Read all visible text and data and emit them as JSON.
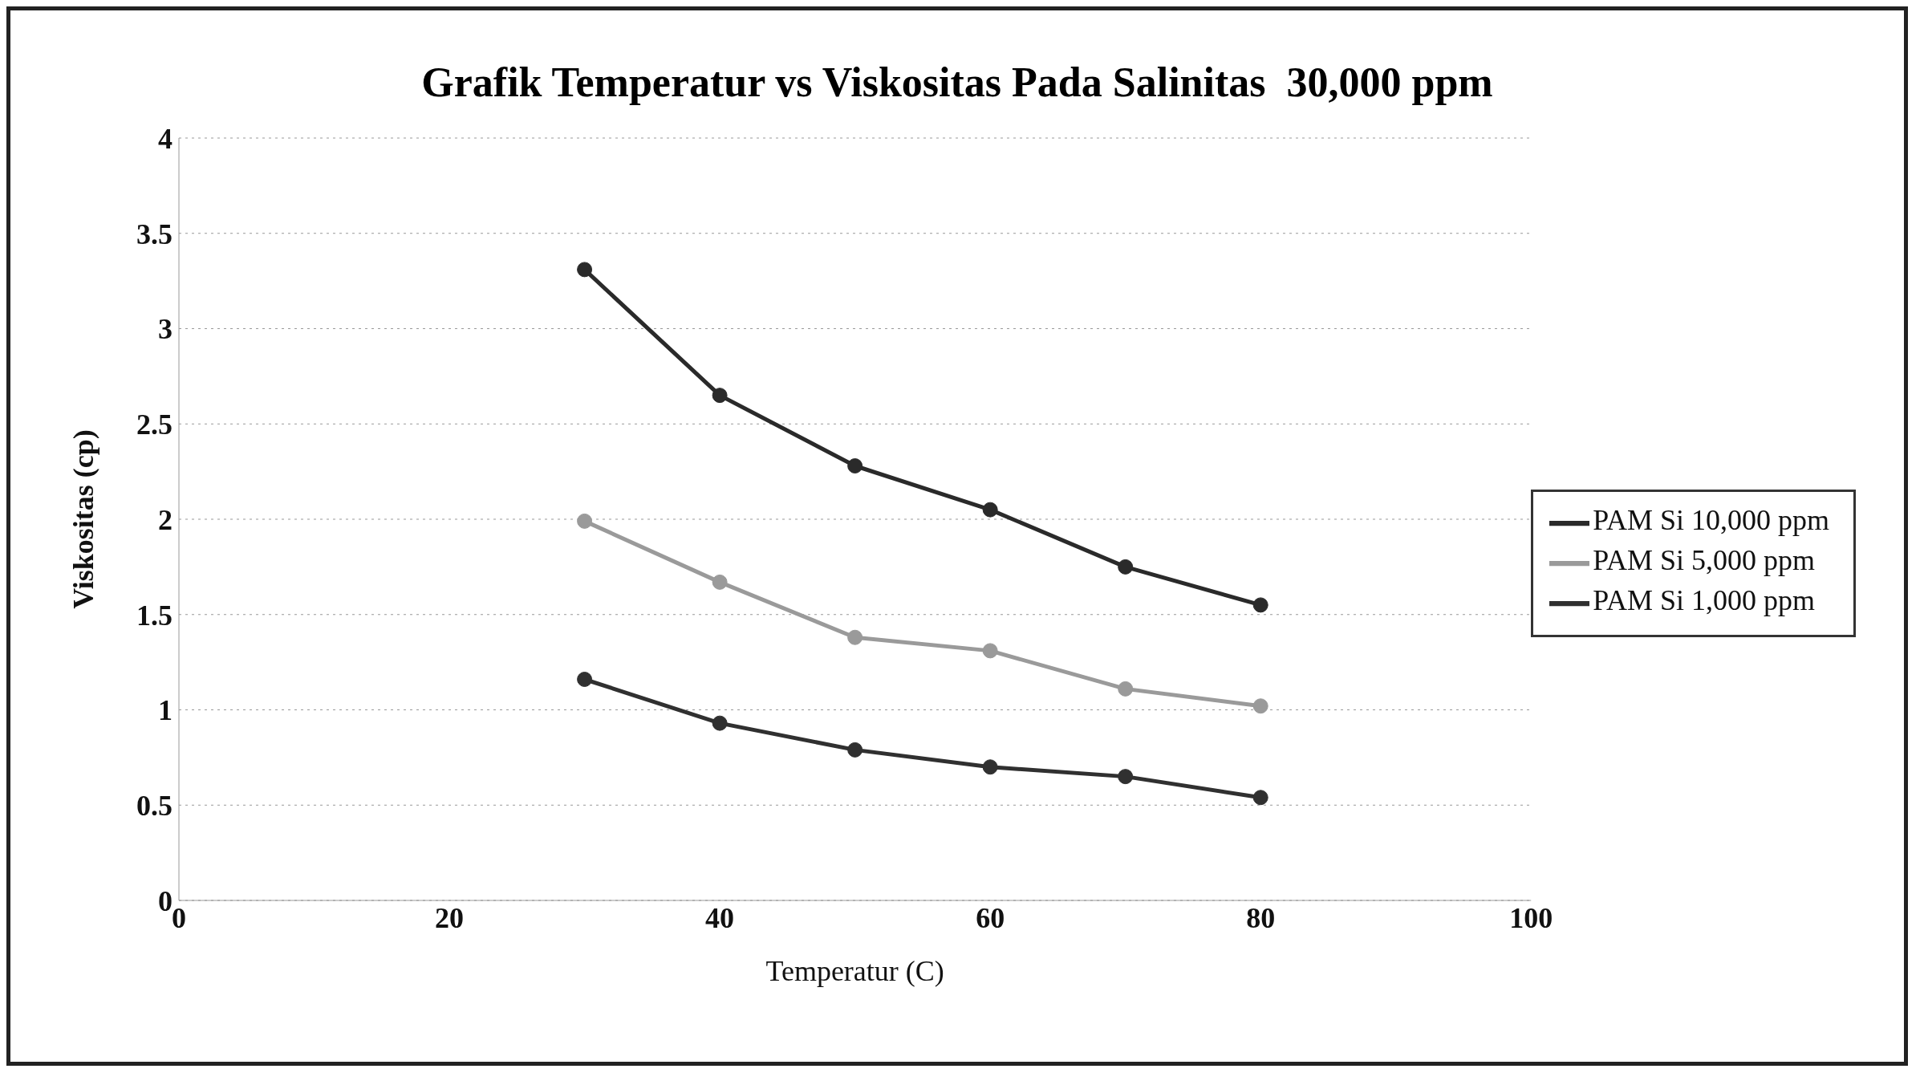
{
  "chart_data": {
    "type": "line",
    "title": "Grafik Temperatur vs Viskositas Pada Salinitas  30,000 ppm",
    "xlabel": "Temperatur (C)",
    "ylabel": "Viskositas (cp)",
    "x": [
      30,
      40,
      50,
      60,
      70,
      80
    ],
    "series": [
      {
        "name": "PAM Si 10,000 ppm",
        "color": "#2a2a2a",
        "values": [
          3.31,
          2.65,
          2.28,
          2.05,
          1.75,
          1.55
        ]
      },
      {
        "name": "PAM Si 5,000 ppm",
        "color": "#9a9a9a",
        "values": [
          1.99,
          1.67,
          1.38,
          1.31,
          1.11,
          1.02
        ]
      },
      {
        "name": "PAM Si 1,000 ppm",
        "color": "#303030",
        "values": [
          1.16,
          0.93,
          0.79,
          0.7,
          0.65,
          0.54
        ]
      }
    ],
    "xlim": [
      0,
      100
    ],
    "xticks": [
      0,
      20,
      40,
      60,
      80,
      100
    ],
    "ylim": [
      0,
      4
    ],
    "yticks": [
      0,
      0.5,
      1,
      1.5,
      2,
      2.5,
      3,
      3.5,
      4
    ],
    "grid": "y",
    "legend": "right",
    "marker": "circle",
    "line_style": "solid"
  }
}
